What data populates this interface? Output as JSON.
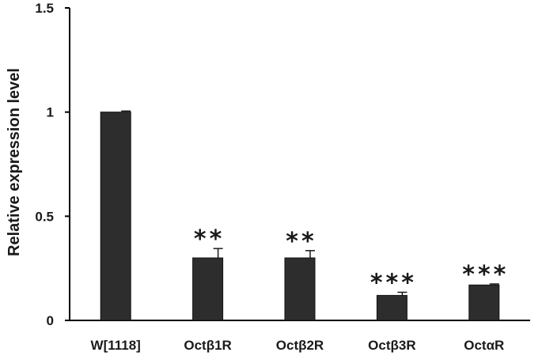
{
  "chart_data": {
    "type": "bar",
    "title": "",
    "xlabel": "",
    "ylabel": "Relative expression level",
    "ylim": [
      0,
      1.5
    ],
    "yticks": [
      "0",
      "0.5",
      "1",
      "1.5"
    ],
    "grid": false,
    "legend": "none",
    "categories": [
      "W[1118]",
      "Octβ1R",
      "Octβ2R",
      "Octβ3R",
      "OctαR"
    ],
    "values": [
      1.0,
      0.3,
      0.3,
      0.12,
      0.17
    ],
    "errors": [
      0.005,
      0.045,
      0.035,
      0.015,
      0.005
    ],
    "significance": [
      "",
      "**",
      "**",
      "***",
      "***"
    ],
    "bar_color": "#2d2d2d",
    "axis_color": "#000000"
  }
}
